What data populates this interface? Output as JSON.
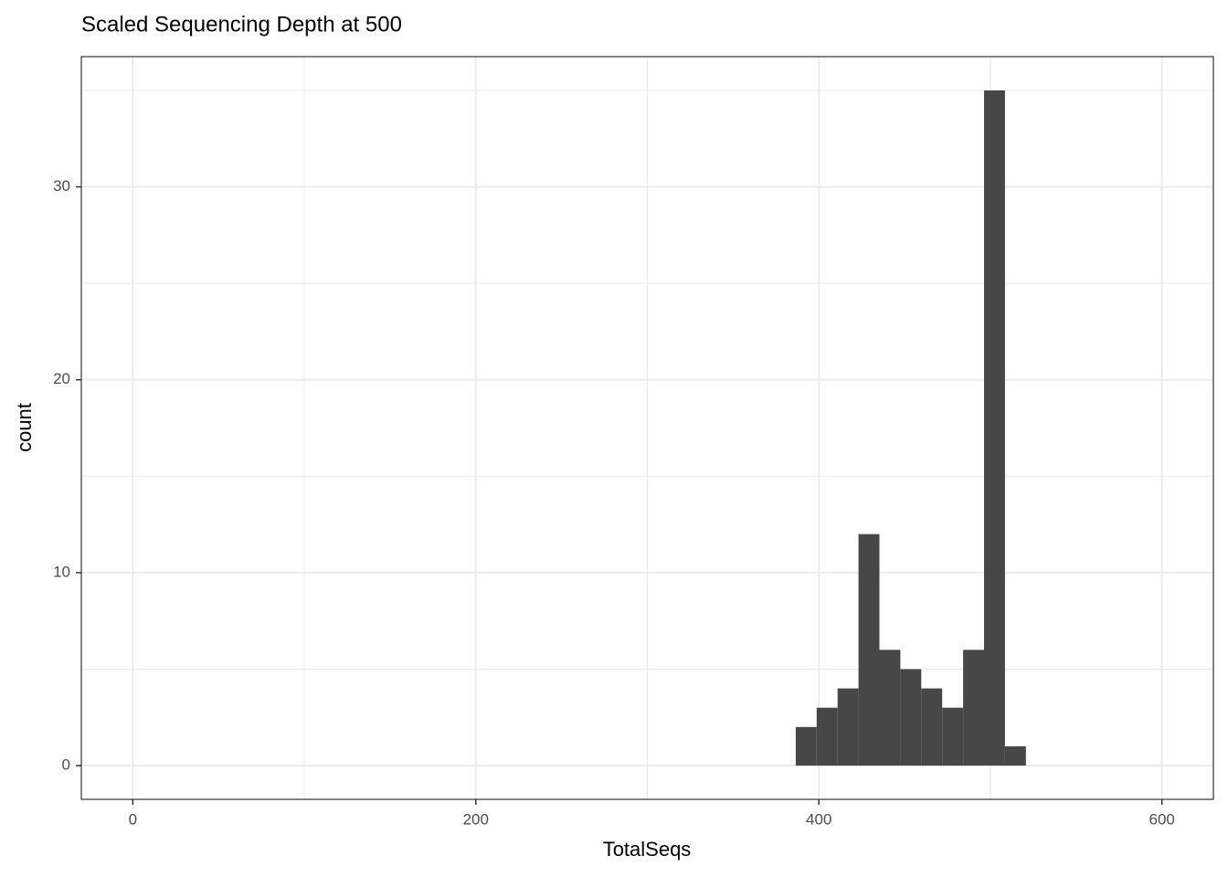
{
  "chart_data": {
    "type": "histogram",
    "title": "Scaled Sequencing Depth at 500",
    "x_label": "TotalSeqs",
    "y_label": "count",
    "bins": [
      386.5,
      398.7,
      410.9,
      423.1,
      435.3,
      447.5,
      459.7,
      471.9,
      484.1,
      496.3,
      508.5,
      520.7
    ],
    "values": [
      2,
      3,
      4,
      12,
      6,
      5,
      4,
      3,
      6,
      35,
      1
    ],
    "color": "#474747",
    "xlim": [
      -30,
      630
    ],
    "xticks": [
      0,
      200,
      400,
      600
    ],
    "ylim": [
      -1.75,
      36.75
    ],
    "yticks": [
      0,
      10,
      20,
      30
    ],
    "grid": true
  }
}
